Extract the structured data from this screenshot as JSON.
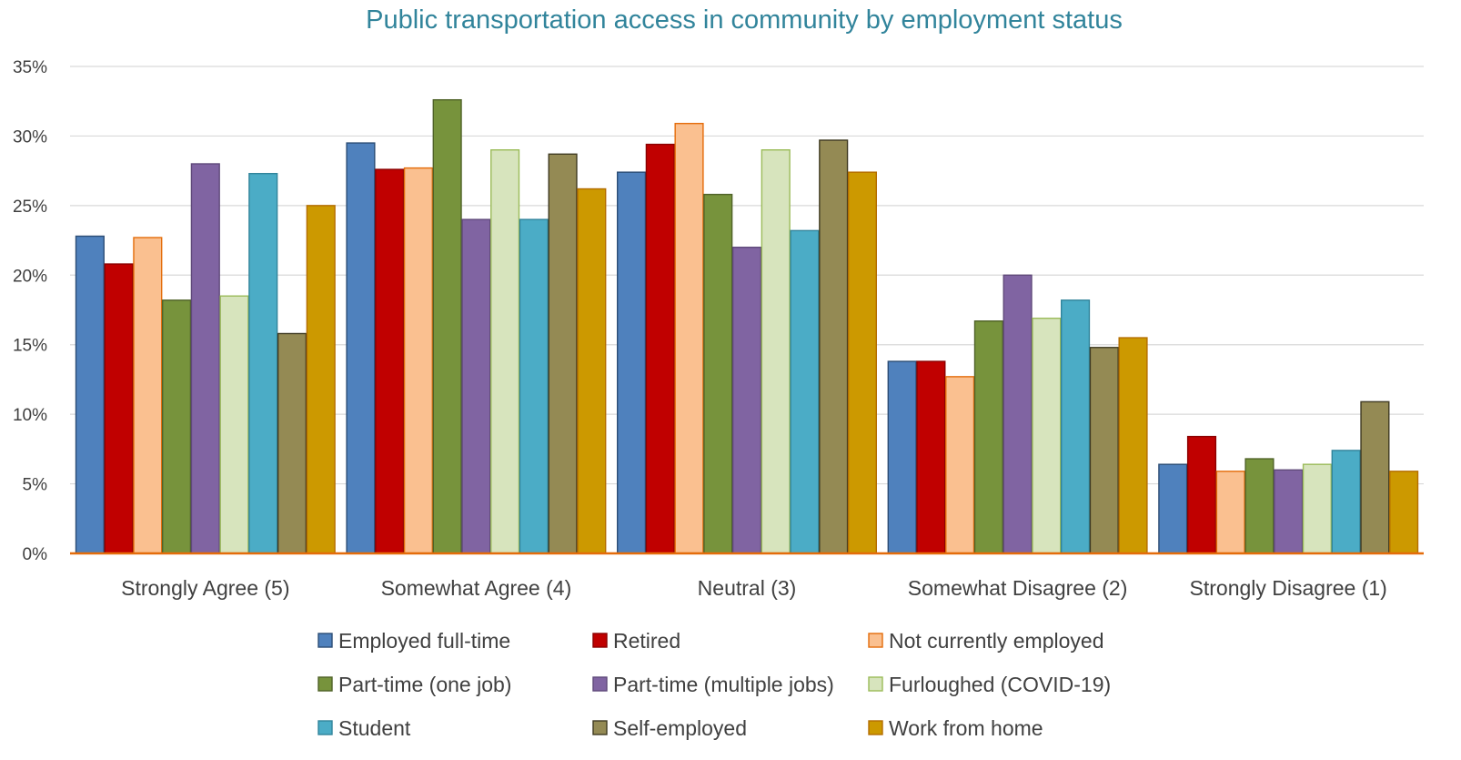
{
  "chart_data": {
    "type": "bar",
    "title": "Public transportation access in community by employment status",
    "xlabel": "",
    "ylabel": "",
    "ylim": [
      0,
      35
    ],
    "yticks": [
      0,
      5,
      10,
      15,
      20,
      25,
      30,
      35
    ],
    "tick_suffix": "%",
    "grid": true,
    "legend_position": "bottom",
    "categories": [
      "Strongly Agree (5)",
      "Somewhat Agree (4)",
      "Neutral (3)",
      "Somewhat Disagree (2)",
      "Strongly Disagree (1)"
    ],
    "series": [
      {
        "name": "Employed full-time",
        "fill": "#4f81bd",
        "stroke": "#2c4d75",
        "values": [
          22.8,
          29.5,
          27.4,
          13.8,
          6.4
        ]
      },
      {
        "name": "Retired",
        "fill": "#c00000",
        "stroke": "#8b0000",
        "values": [
          20.8,
          27.6,
          29.4,
          13.8,
          8.4
        ]
      },
      {
        "name": "Not currently employed",
        "fill": "#fac090",
        "stroke": "#e46c0a",
        "values": [
          22.7,
          27.7,
          30.9,
          12.7,
          5.9
        ]
      },
      {
        "name": "Part-time (one job)",
        "fill": "#77933c",
        "stroke": "#4f6228",
        "values": [
          18.2,
          32.6,
          25.8,
          16.7,
          6.8
        ]
      },
      {
        "name": "Part-time (multiple jobs)",
        "fill": "#8064a2",
        "stroke": "#5f497a",
        "values": [
          28.0,
          24.0,
          22.0,
          20.0,
          6.0
        ]
      },
      {
        "name": "Furloughed (COVID-19)",
        "fill": "#d7e4bd",
        "stroke": "#9bbb59",
        "values": [
          18.5,
          29.0,
          29.0,
          16.9,
          6.4
        ]
      },
      {
        "name": "Student",
        "fill": "#4bacc6",
        "stroke": "#31849b",
        "values": [
          27.3,
          24.0,
          23.2,
          18.2,
          7.4
        ]
      },
      {
        "name": "Self-employed",
        "fill": "#948a54",
        "stroke": "#3f3a22",
        "values": [
          15.8,
          28.7,
          29.7,
          14.8,
          10.9
        ]
      },
      {
        "name": "Work from home",
        "fill": "#cc9900",
        "stroke": "#b46d00",
        "values": [
          25.0,
          26.2,
          27.4,
          15.5,
          5.9
        ]
      }
    ]
  }
}
